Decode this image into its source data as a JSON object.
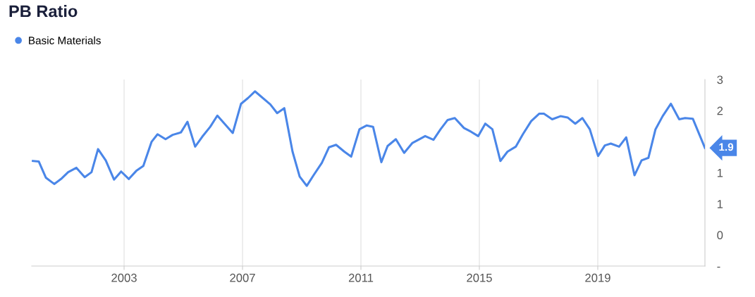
{
  "chart_data": {
    "type": "line",
    "title": "PB Ratio",
    "x": [
      1999.92,
      2000.12,
      2000.36,
      2000.64,
      2000.87,
      2001.11,
      2001.39,
      2001.67,
      2001.9,
      2002.12,
      2002.38,
      2002.66,
      2002.9,
      2003.16,
      2003.41,
      2003.65,
      2003.93,
      2004.13,
      2004.4,
      2004.64,
      2004.92,
      2005.14,
      2005.4,
      2005.64,
      2005.91,
      2006.15,
      2006.67,
      2006.95,
      2007.18,
      2007.42,
      2007.94,
      2008.17,
      2008.41,
      2008.69,
      2008.93,
      2009.17,
      2009.4,
      2009.68,
      2009.92,
      2010.16,
      2010.44,
      2010.67,
      2010.95,
      2011.19,
      2011.41,
      2011.69,
      2011.9,
      2012.18,
      2012.46,
      2012.74,
      2012.94,
      2013.17,
      2013.45,
      2013.69,
      2013.93,
      2014.17,
      2014.48,
      2014.72,
      2014.96,
      2015.2,
      2015.44,
      2015.71,
      2015.95,
      2016.23,
      2016.47,
      2016.75,
      2017.02,
      2017.18,
      2017.46,
      2017.74,
      2017.98,
      2018.24,
      2018.48,
      2018.73,
      2019.01,
      2019.24,
      2019.44,
      2019.72,
      2019.96,
      2020.24,
      2020.48,
      2020.71,
      2020.95,
      2021.19,
      2021.47,
      2021.75,
      2021.95,
      2022.21,
      2022.62
    ],
    "series": [
      {
        "name": "Basic Materials",
        "color": "#4a86e8",
        "values": [
          1.69,
          1.68,
          1.42,
          1.32,
          1.4,
          1.51,
          1.58,
          1.43,
          1.51,
          1.88,
          1.7,
          1.39,
          1.52,
          1.4,
          1.53,
          1.61,
          2.0,
          2.12,
          2.04,
          2.11,
          2.15,
          2.32,
          1.92,
          2.08,
          2.24,
          2.42,
          2.14,
          2.61,
          2.7,
          2.81,
          2.6,
          2.46,
          2.54,
          1.84,
          1.44,
          1.29,
          1.46,
          1.66,
          1.91,
          1.95,
          1.84,
          1.76,
          2.2,
          2.26,
          2.24,
          1.67,
          1.93,
          2.04,
          1.82,
          1.98,
          2.03,
          2.09,
          2.03,
          2.2,
          2.35,
          2.38,
          2.22,
          2.16,
          2.09,
          2.29,
          2.2,
          1.69,
          1.84,
          1.92,
          2.12,
          2.33,
          2.45,
          2.45,
          2.36,
          2.41,
          2.39,
          2.29,
          2.38,
          2.2,
          1.77,
          1.94,
          1.97,
          1.92,
          2.07,
          1.46,
          1.7,
          1.74,
          2.2,
          2.41,
          2.61,
          2.36,
          2.38,
          2.37,
          1.9
        ]
      }
    ],
    "annotations": [
      {
        "text": "1.9",
        "x": 2022.62,
        "y": 1.9
      }
    ],
    "xlim": [
      1999.88,
      2022.62
    ],
    "xticks": [
      2003,
      2007,
      2011,
      2015,
      2019
    ],
    "ylim": [
      0,
      3
    ],
    "yticks": [
      {
        "value": 0,
        "label": "-"
      },
      {
        "value": 0.5,
        "label": "0"
      },
      {
        "value": 1,
        "label": "1"
      },
      {
        "value": 1.5,
        "label": "1"
      },
      {
        "value": 2.5,
        "label": "2"
      },
      {
        "value": 3,
        "label": "3"
      }
    ],
    "grid": "x",
    "legend": "top left",
    "marker": "none",
    "line_style": "solid"
  }
}
